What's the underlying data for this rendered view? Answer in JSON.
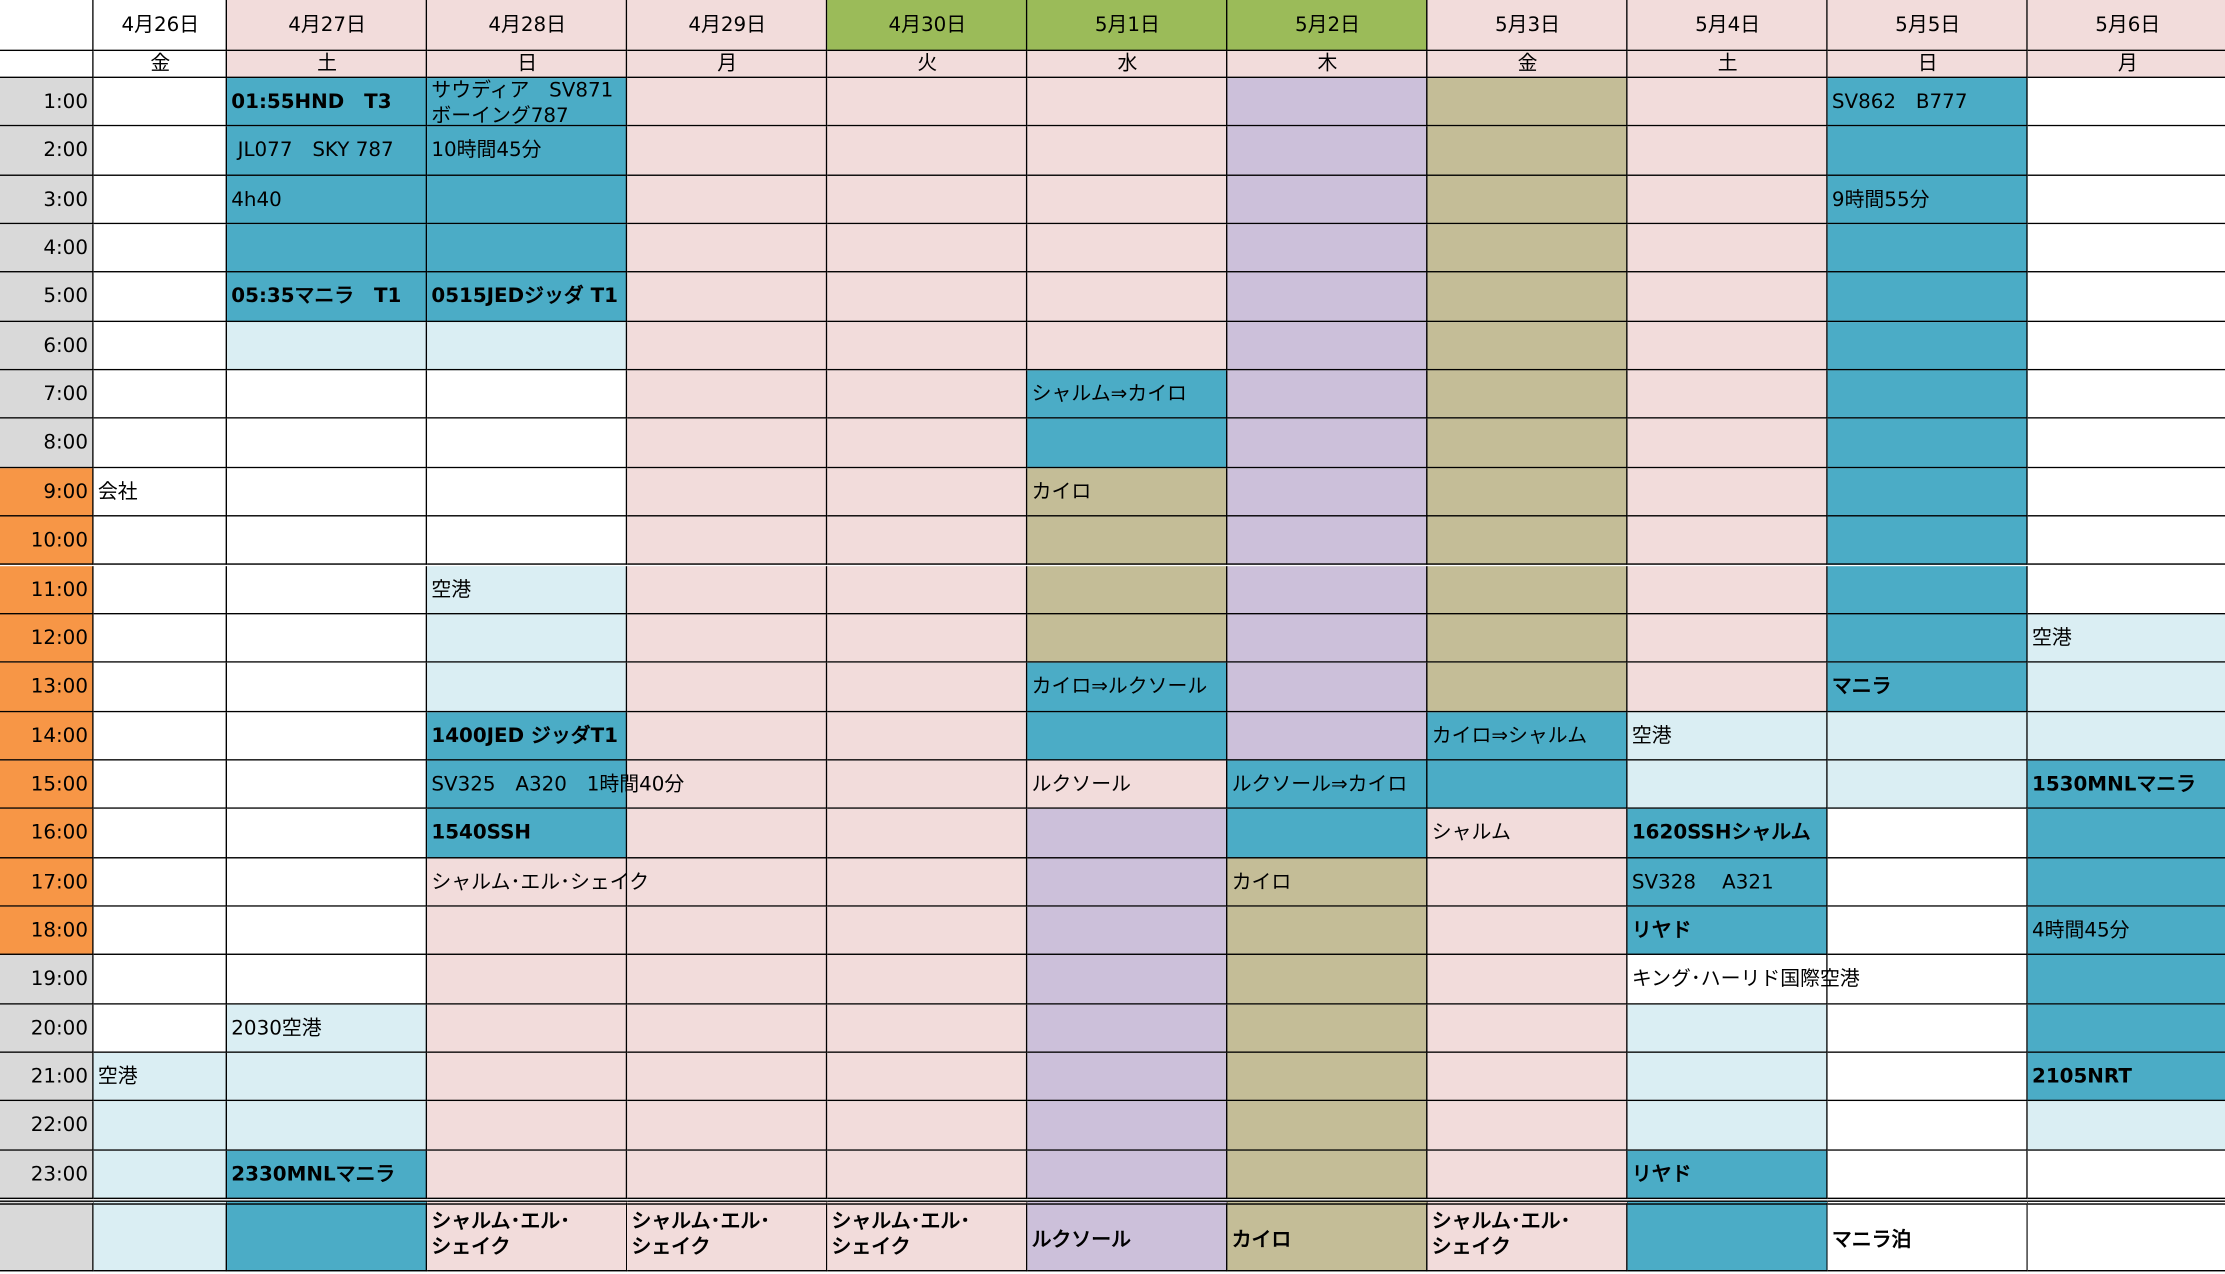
{
  "time_slots": [
    "1:00",
    "2:00",
    "3:00",
    "4:00",
    "5:00",
    "6:00",
    "7:00",
    "8:00",
    "9:00",
    "10:00",
    "11:00",
    "12:00",
    "13:00",
    "14:00",
    "15:00",
    "16:00",
    "17:00",
    "18:00",
    "19:00",
    "20:00",
    "21:00",
    "22:00",
    "23:00"
  ],
  "columns": [
    {
      "date": "4月26日",
      "weekday": "金",
      "cells": {
        "8": "会社",
        "20": "空港"
      }
    },
    {
      "date": "4月27日",
      "weekday": "土",
      "cells": {
        "0": "01:55HND　T3",
        "1": " JL077　SKY 787",
        "2": "4h40",
        "4": "05:35マニラ　T1",
        "19": "2030空港",
        "22": "2330MNLマニラ"
      }
    },
    {
      "date": "4月28日",
      "weekday": "日",
      "cells": {
        "0": "サウディア　SV871\nボーイング787",
        "1": "10時間45分",
        "4": "0515JEDジッダ T1",
        "10": "空港",
        "13": "1400JED ジッダT1",
        "14": "SV325　A320　1時間40分",
        "15": "1540SSH",
        "16": "シャルム･エル･シェイク"
      },
      "footer": "シャルム･エル･\nシェイク"
    },
    {
      "date": "4月29日",
      "weekday": "月",
      "cells": {},
      "footer": "シャルム･エル･\nシェイク"
    },
    {
      "date": "4月30日",
      "weekday": "火",
      "cells": {},
      "footer": "シャルム･エル･\nシェイク"
    },
    {
      "date": "5月1日",
      "weekday": "水",
      "cells": {
        "6": "シャルム⇒カイロ",
        "8": "カイロ",
        "12": "カイロ⇒ルクソール",
        "14": "ルクソール"
      },
      "footer": "ルクソール"
    },
    {
      "date": "5月2日",
      "weekday": "木",
      "cells": {
        "14": "ルクソール⇒カイロ",
        "16": "カイロ"
      },
      "footer": "カイロ"
    },
    {
      "date": "5月3日",
      "weekday": "金",
      "cells": {
        "13": "カイロ⇒シャルム",
        "15": "シャルム"
      },
      "footer": "シャルム･エル･\nシェイク"
    },
    {
      "date": "5月4日",
      "weekday": "土",
      "cells": {
        "13": "空港",
        "15": "1620SSHシャルム",
        "16": "SV328　 A321",
        "17": "リヤド",
        "18": "キング･ハーリド国際空港",
        "22": "リヤド"
      }
    },
    {
      "date": "5月5日",
      "weekday": "日",
      "cells": {
        "0": "SV862　B777",
        "2": "9時間55分",
        "12": "マニラ"
      },
      "footer": "マニラ泊"
    },
    {
      "date": "5月6日",
      "weekday": "月",
      "cells": {
        "11": "空港",
        "14": "1530MNLマニラ",
        "17": "4時間45分",
        "20": "2105NRT"
      }
    }
  ]
}
